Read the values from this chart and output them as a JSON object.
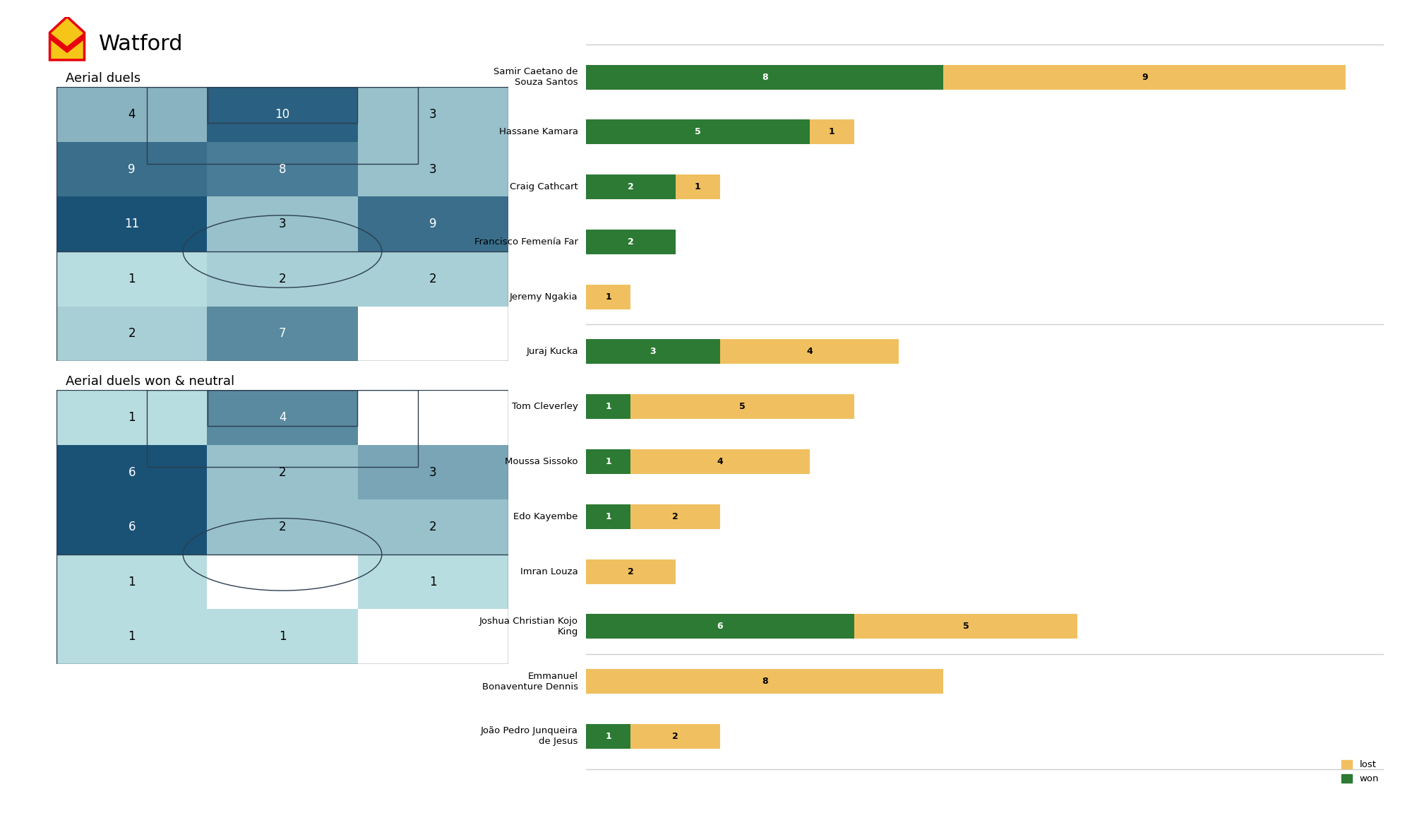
{
  "title": "Watford",
  "heatmap1_title": "Aerial duels",
  "heatmap2_title": "Aerial duels won & neutral",
  "heatmap1_values": [
    [
      4,
      10,
      3
    ],
    [
      9,
      8,
      3
    ],
    [
      11,
      3,
      9
    ],
    [
      1,
      2,
      2
    ],
    [
      2,
      7,
      0
    ]
  ],
  "heatmap2_values": [
    [
      1,
      4,
      0
    ],
    [
      6,
      2,
      3
    ],
    [
      6,
      2,
      2
    ],
    [
      1,
      0,
      1
    ],
    [
      1,
      1,
      0
    ]
  ],
  "bar_players": [
    "Samir Caetano de\nSouza Santos",
    "Hassane Kamara",
    "Craig Cathcart",
    "Francisco Femenía Far",
    "Jeremy Ngakia",
    "Juraj Kucka",
    "Tom Cleverley",
    "Moussa Sissoko",
    "Edo Kayembe",
    "Imran Louza",
    "Joshua Christian Kojo\nKing",
    "Emmanuel\nBonaventure Dennis",
    "João Pedro Junqueira\nde Jesus"
  ],
  "bar_won": [
    8,
    5,
    2,
    2,
    0,
    3,
    1,
    1,
    1,
    0,
    6,
    0,
    1
  ],
  "bar_lost": [
    9,
    1,
    1,
    0,
    1,
    4,
    5,
    4,
    2,
    2,
    5,
    8,
    2
  ],
  "color_won": "#2d7a35",
  "color_lost": "#f0c060",
  "bg_color": "#ffffff",
  "separator_indices": [
    4,
    10
  ],
  "heatmap_cmin": "#b8dde0",
  "heatmap_cmax": "#1a5276",
  "heatmap_white": "#ffffff",
  "pitch_line_color": "#2c3e50",
  "label_fontsize": 9.5,
  "bar_label_fontsize": 9,
  "title_fontsize": 22,
  "subtitle_fontsize": 13
}
